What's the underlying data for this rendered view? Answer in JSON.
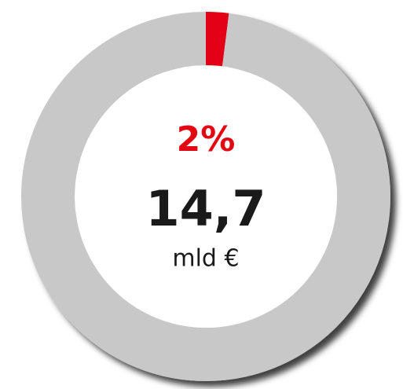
{
  "chart_data": {
    "type": "donut",
    "values": [
      2,
      98
    ],
    "value_labels": [
      "2%",
      null
    ],
    "colors": [
      "#e30613",
      "#c8c8c8"
    ],
    "center_value": "14,7",
    "center_unit": "mld €"
  }
}
